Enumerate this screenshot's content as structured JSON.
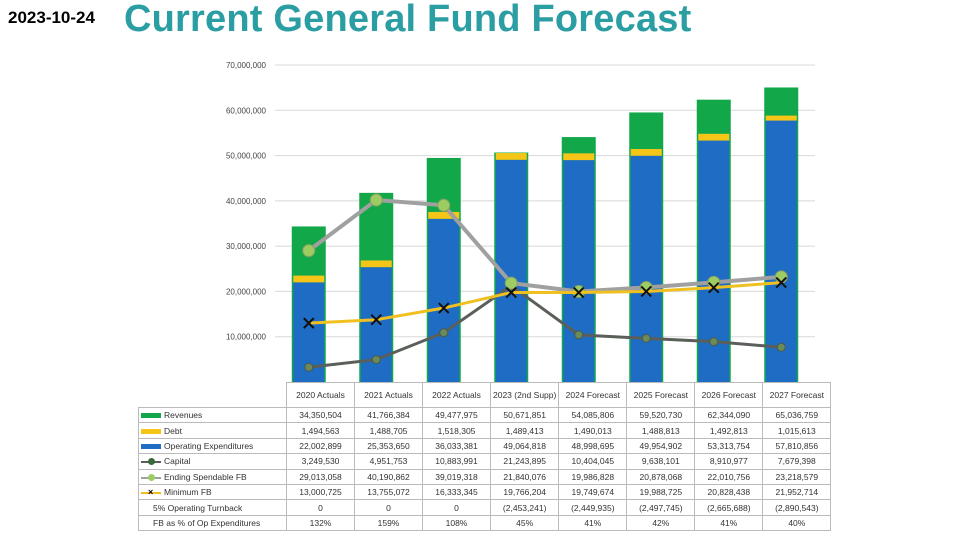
{
  "header": {
    "date": "2023-10-24",
    "title": "Current General Fund Forecast"
  },
  "colors": {
    "revenues": "#12a84a",
    "debt": "#f5c518",
    "opex": "#1f6cc4",
    "capital": "#5a5f5a",
    "ending_fb": "#a0a0a0",
    "ending_fb_marker": "#9ccc62",
    "min_fb": "#f0c020"
  },
  "chart_data": {
    "type": "bar",
    "title": "Current General Fund Forecast",
    "ylim": [
      0,
      70000000
    ],
    "yticks": [
      "",
      "10,000,000",
      "20,000,000",
      "30,000,000",
      "40,000,000",
      "50,000,000",
      "60,000,000",
      "70,000,000"
    ],
    "categories": [
      "2020 Actuals",
      "2021 Actuals",
      "2022 Actuals",
      "2023 (2nd Supp)",
      "2024 Forecast",
      "2025 Forecast",
      "2026 Forecast",
      "2027 Forecast"
    ],
    "series": [
      {
        "name": "Revenues",
        "kind": "bar",
        "values": [
          34350504,
          41766384,
          49477975,
          50671851,
          54085806,
          59520730,
          62344090,
          65036759
        ],
        "display": [
          "34,350,504",
          "41,766,384",
          "49,477,975",
          "50,671,851",
          "54,085,806",
          "59,520,730",
          "62,344,090",
          "65,036,759"
        ]
      },
      {
        "name": "Debt",
        "kind": "bar",
        "values": [
          1494563,
          1488705,
          1518305,
          1489413,
          1490013,
          1488813,
          1492813,
          1015613
        ],
        "display": [
          "1,494,563",
          "1,488,705",
          "1,518,305",
          "1,489,413",
          "1,490,013",
          "1,488,813",
          "1,492,813",
          "1,015,613"
        ]
      },
      {
        "name": "Operating Expenditures",
        "kind": "bar",
        "values": [
          22002899,
          25353650,
          36033381,
          49064818,
          48998695,
          49954902,
          53313754,
          57810856
        ],
        "display": [
          "22,002,899",
          "25,353,650",
          "36,033,381",
          "49,064,818",
          "48,998,695",
          "49,954,902",
          "53,313,754",
          "57,810,856"
        ]
      },
      {
        "name": "Capital",
        "kind": "line",
        "values": [
          3249530,
          4951753,
          10883991,
          21243895,
          10404045,
          9638101,
          8910977,
          7679398
        ],
        "display": [
          "3,249,530",
          "4,951,753",
          "10,883,991",
          "21,243,895",
          "10,404,045",
          "9,638,101",
          "8,910,977",
          "7,679,398"
        ]
      },
      {
        "name": "Ending Spendable FB",
        "kind": "line",
        "values": [
          29013058,
          40190862,
          39019318,
          21840076,
          19986828,
          20878068,
          22010756,
          23218579
        ],
        "display": [
          "29,013,058",
          "40,190,862",
          "39,019,318",
          "21,840,076",
          "19,986,828",
          "20,878,068",
          "22,010,756",
          "23,218,579"
        ]
      },
      {
        "name": "Minimum FB",
        "kind": "line",
        "values": [
          13000725,
          13755072,
          16333345,
          19766204,
          19749674,
          19988725,
          20828438,
          21952714
        ],
        "display": [
          "13,000,725",
          "13,755,072",
          "16,333,345",
          "19,766,204",
          "19,749,674",
          "19,988,725",
          "20,828,438",
          "21,952,714"
        ]
      }
    ],
    "extra_rows": [
      {
        "name": "5% Operating Turnback",
        "display": [
          "0",
          "0",
          "0",
          "(2,453,241)",
          "(2,449,935)",
          "(2,497,745)",
          "(2,665,688)",
          "(2,890,543)"
        ]
      },
      {
        "name": "FB as % of Op Expenditures",
        "display": [
          "132%",
          "159%",
          "108%",
          "45%",
          "41%",
          "42%",
          "41%",
          "40%"
        ]
      }
    ]
  }
}
